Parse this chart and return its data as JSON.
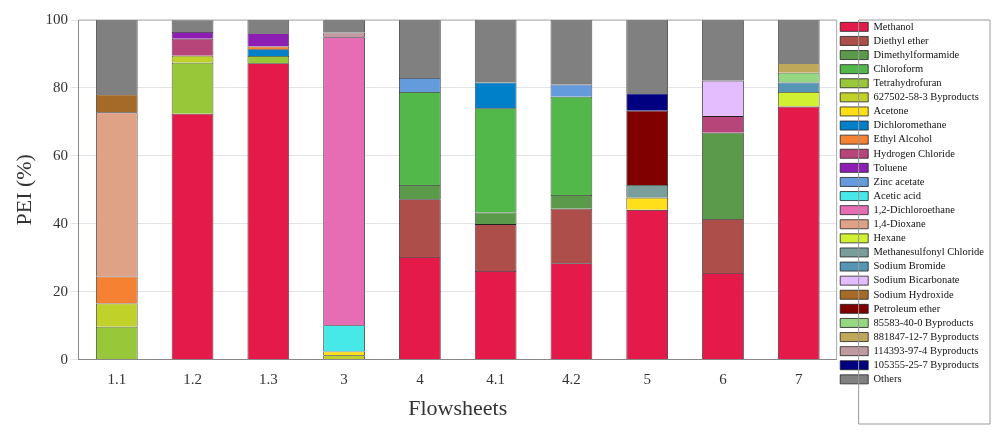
{
  "chart_data": {
    "type": "bar",
    "stacked": true,
    "xlabel": "Flowsheets",
    "ylabel": "PEI (%)",
    "categories": [
      "1.1",
      "1.2",
      "1.3",
      "3",
      "4",
      "4.1",
      "4.2",
      "5",
      "6",
      "7"
    ],
    "ylim": [
      0,
      100
    ],
    "yticks": [
      0,
      20,
      40,
      60,
      80,
      100
    ],
    "grid": "y",
    "legend": "right",
    "series": [
      {
        "name": "Methanol",
        "color": "#e31a4a",
        "values": [
          null,
          72.4,
          87.3,
          null,
          30.2,
          26.1,
          28.4,
          44.1,
          25.5,
          74.5
        ]
      },
      {
        "name": "Diethyl ether",
        "color": "#ad4e4a",
        "values": [
          null,
          null,
          null,
          null,
          17.0,
          13.8,
          16.0,
          null,
          15.9,
          null
        ]
      },
      {
        "name": "Dimethylformamide",
        "color": "#5a9a4a",
        "values": [
          null,
          null,
          null,
          null,
          4.2,
          3.4,
          4.1,
          null,
          25.4,
          null
        ]
      },
      {
        "name": "Chloroform",
        "color": "#52b84a",
        "values": [
          null,
          null,
          null,
          null,
          27.4,
          30.7,
          28.9,
          null,
          null,
          null
        ]
      },
      {
        "name": "Tetrahydrofuran",
        "color": "#98c83a",
        "values": [
          9.7,
          15.0,
          2.1,
          null,
          null,
          null,
          null,
          null,
          null,
          null
        ]
      },
      {
        "name": "627502-58-3 Byproducts",
        "color": "#c0d12a",
        "values": [
          6.8,
          2.1,
          null,
          1.3,
          null,
          null,
          null,
          null,
          null,
          null
        ]
      },
      {
        "name": "Acetone",
        "color": "#ffde1a",
        "values": [
          null,
          null,
          null,
          1.1,
          null,
          null,
          null,
          3.6,
          null,
          null
        ]
      },
      {
        "name": "Dichloromethane",
        "color": "#0080c8",
        "values": [
          null,
          null,
          2.0,
          null,
          null,
          7.6,
          null,
          null,
          null,
          null
        ]
      },
      {
        "name": "Ethyl Alcohol",
        "color": "#f58232",
        "values": [
          8.0,
          null,
          0.8,
          null,
          null,
          null,
          null,
          null,
          null,
          null
        ]
      },
      {
        "name": "Hydrogen Chloride",
        "color": "#b8457a",
        "values": [
          null,
          5.0,
          null,
          null,
          null,
          null,
          null,
          null,
          4.9,
          null
        ]
      },
      {
        "name": "Toluene",
        "color": "#8c1eb4",
        "values": [
          null,
          2.0,
          3.9,
          null,
          null,
          null,
          null,
          null,
          null,
          null
        ]
      },
      {
        "name": "Zinc acetate",
        "color": "#649bdc",
        "values": [
          null,
          null,
          null,
          null,
          4.1,
          null,
          3.6,
          null,
          null,
          null
        ]
      },
      {
        "name": "Acetic acid",
        "color": "#46e8e8",
        "values": [
          null,
          null,
          null,
          7.7,
          null,
          null,
          null,
          null,
          null,
          null
        ]
      },
      {
        "name": "1,2-Dichloroethane",
        "color": "#e66cb4",
        "values": [
          null,
          null,
          null,
          84.8,
          null,
          null,
          null,
          null,
          null,
          null
        ]
      },
      {
        "name": "1,4-Dioxane",
        "color": "#e0a286",
        "values": [
          48.3,
          null,
          null,
          null,
          null,
          null,
          null,
          null,
          null,
          null
        ]
      },
      {
        "name": "Hexane",
        "color": "#d2f032",
        "values": [
          null,
          null,
          null,
          null,
          null,
          null,
          null,
          null,
          null,
          4.3
        ]
      },
      {
        "name": "Methanesulfonyl Chloride",
        "color": "#7a9e9a",
        "values": [
          null,
          null,
          null,
          null,
          null,
          null,
          null,
          3.7,
          null,
          null
        ]
      },
      {
        "name": "Sodium Bromide",
        "color": "#5596b4",
        "values": [
          null,
          null,
          null,
          null,
          null,
          null,
          null,
          null,
          null,
          2.8
        ]
      },
      {
        "name": "Sodium Bicarbonate",
        "color": "#e3bdff",
        "values": [
          null,
          null,
          null,
          null,
          null,
          null,
          null,
          null,
          10.4,
          null
        ]
      },
      {
        "name": "Sodium Hydroxide",
        "color": "#a56a28",
        "values": [
          5.3,
          null,
          null,
          null,
          null,
          null,
          null,
          null,
          null,
          null
        ]
      },
      {
        "name": "Petroleum ether",
        "color": "#800000",
        "values": [
          null,
          null,
          null,
          null,
          null,
          null,
          null,
          21.9,
          null,
          null
        ]
      },
      {
        "name": "85583-40-0 Byproducts",
        "color": "#96d782",
        "values": [
          null,
          null,
          null,
          null,
          null,
          null,
          null,
          null,
          null,
          2.9
        ]
      },
      {
        "name": "881847-12-7 Byproducts",
        "color": "#c0a85a",
        "values": [
          null,
          null,
          null,
          null,
          null,
          null,
          null,
          null,
          null,
          2.8
        ]
      },
      {
        "name": "114393-97-4 Byproducts",
        "color": "#c09aa0",
        "values": [
          null,
          null,
          null,
          1.4,
          null,
          null,
          null,
          null,
          null,
          null
        ]
      },
      {
        "name": "105355-25-7 Byproducts",
        "color": "#000080",
        "values": [
          null,
          null,
          null,
          null,
          null,
          null,
          null,
          5.1,
          null,
          null
        ]
      },
      {
        "name": "Others",
        "color": "#808080",
        "values": [
          21.9,
          3.6,
          3.9,
          3.7,
          17.1,
          18.4,
          19.0,
          21.6,
          17.9,
          12.7
        ]
      }
    ]
  }
}
